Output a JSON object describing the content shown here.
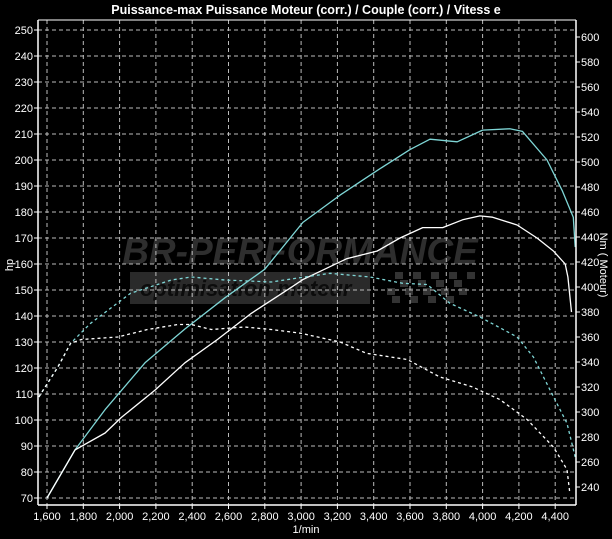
{
  "chart_data": {
    "type": "line",
    "title": "Puissance-max Puissance Moteur (corr.) / Couple (corr.) / Vitess e",
    "xlabel": "1/min",
    "ylabel_left": "hp",
    "ylabel_right": "Nm ( Moteur)",
    "xlim": [
      1550,
      4515
    ],
    "ylim_left": [
      70,
      250
    ],
    "ylim_right": [
      240,
      600
    ],
    "x_ticks": [
      1600,
      1800,
      2000,
      2200,
      2400,
      2600,
      2800,
      3000,
      3200,
      3400,
      3600,
      3800,
      4000,
      4200,
      4400
    ],
    "x_tick_labels": [
      "1,600",
      "1,800",
      "2,000",
      "2,200",
      "2,400",
      "2,600",
      "2,800",
      "3,000",
      "3,200",
      "3,400",
      "3,600",
      "3,800",
      "4,000",
      "4,200",
      "4,400"
    ],
    "y_left_ticks": [
      70,
      80,
      90,
      100,
      110,
      120,
      130,
      140,
      150,
      160,
      170,
      180,
      190,
      200,
      210,
      220,
      230,
      240,
      250
    ],
    "y_right_ticks": [
      240,
      260,
      280,
      300,
      320,
      340,
      360,
      380,
      400,
      420,
      440,
      460,
      480,
      500,
      520,
      540,
      560,
      580,
      600
    ],
    "grid": true,
    "legend": "none",
    "watermark": {
      "line1": "BR-PERFORMANCE",
      "line2": "optimisation moteur"
    },
    "series": [
      {
        "axis": "left",
        "color": "#7fd6d6",
        "style": "solid",
        "x": [
          1600,
          1754,
          1920,
          2140,
          2360,
          2580,
          2800,
          3010,
          3215,
          3420,
          3600,
          3710,
          3860,
          4000,
          4150,
          4220,
          4355,
          4440,
          4500,
          4510
        ],
        "y": [
          70,
          88.5,
          104,
          122,
          135,
          147,
          158,
          176,
          186.5,
          196,
          204,
          208,
          207,
          211.5,
          212,
          211,
          200,
          188,
          178,
          166.5
        ]
      },
      {
        "axis": "left",
        "color": "#ffffff",
        "style": "solid",
        "x": [
          1600,
          1754,
          1920,
          2010,
          2195,
          2360,
          2540,
          2725,
          2945,
          3010,
          3250,
          3420,
          3545,
          3670,
          3780,
          3890,
          3985,
          4055,
          4190,
          4300,
          4390,
          4455,
          4470,
          4490
        ],
        "y": [
          70,
          88.5,
          95,
          101,
          111.5,
          122,
          131,
          141,
          151,
          154,
          162,
          165,
          170,
          174,
          174,
          177,
          178.5,
          178,
          175,
          170,
          165,
          160,
          155,
          141.5
        ]
      },
      {
        "axis": "right",
        "color": "#7fd6d6",
        "style": "dashed",
        "x": [
          1555,
          1660,
          1730,
          1840,
          2060,
          2285,
          2395,
          2580,
          2835,
          3020,
          3160,
          3380,
          3560,
          3695,
          3820,
          3985,
          4190,
          4280,
          4370,
          4465,
          4510
        ],
        "y": [
          312,
          336,
          355,
          371,
          395,
          405.6,
          408,
          405.6,
          404,
          408,
          411,
          408,
          403,
          402,
          387,
          376,
          360,
          344,
          318,
          291,
          264
        ]
      },
      {
        "axis": "right",
        "color": "#ffffff",
        "style": "dashed",
        "x": [
          1555,
          1660,
          1730,
          1790,
          1990,
          2155,
          2320,
          2395,
          2505,
          2690,
          2835,
          3000,
          3215,
          3360,
          3585,
          3765,
          3945,
          4095,
          4245,
          4390,
          4465,
          4480
        ],
        "y": [
          312,
          336,
          355,
          358,
          360,
          366,
          370,
          370,
          366,
          368,
          366,
          363,
          356,
          347,
          342,
          328,
          320,
          310,
          294,
          272,
          254,
          236
        ]
      }
    ]
  }
}
